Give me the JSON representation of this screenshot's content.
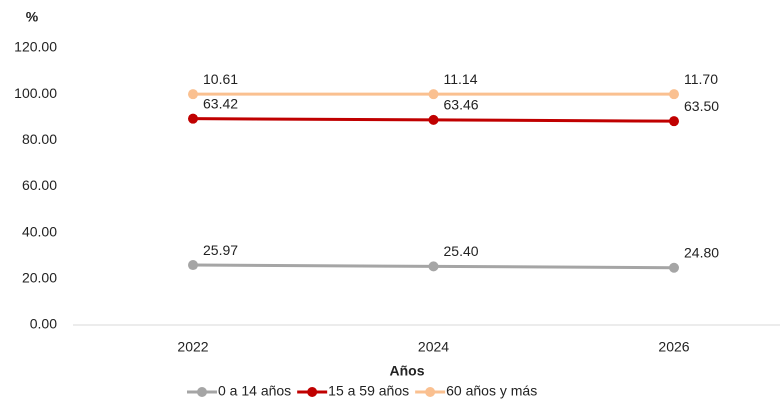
{
  "chart_data": {
    "type": "line",
    "stacked": true,
    "y_label": "%",
    "x_label": "Años",
    "categories": [
      "2022",
      "2024",
      "2026"
    ],
    "series": [
      {
        "name": "0 a 14 años",
        "color": "#a5a5a5",
        "values": [
          25.97,
          25.4,
          24.8
        ],
        "value_labels": [
          "25.97",
          "25.40",
          "24.80"
        ]
      },
      {
        "name": "15 a 59 años",
        "color": "#c00000",
        "values": [
          63.42,
          63.46,
          63.5
        ],
        "value_labels": [
          "63.42",
          "63.46",
          "63.50"
        ]
      },
      {
        "name": "60 años y más",
        "color": "#fac090",
        "values": [
          10.61,
          11.14,
          11.7
        ],
        "value_labels": [
          "10.61",
          "11.14",
          "11.70"
        ]
      }
    ],
    "ylim": [
      0,
      120
    ],
    "yticks": [
      {
        "value": 0,
        "label": "0.00"
      },
      {
        "value": 20,
        "label": "20.00"
      },
      {
        "value": 40,
        "label": "40.00"
      },
      {
        "value": 60,
        "label": "60.00"
      },
      {
        "value": 80,
        "label": "80.00"
      },
      {
        "value": 100,
        "label": "100.00"
      },
      {
        "value": 120,
        "label": "120.00"
      }
    ],
    "grid": false,
    "legend": "bottom"
  }
}
